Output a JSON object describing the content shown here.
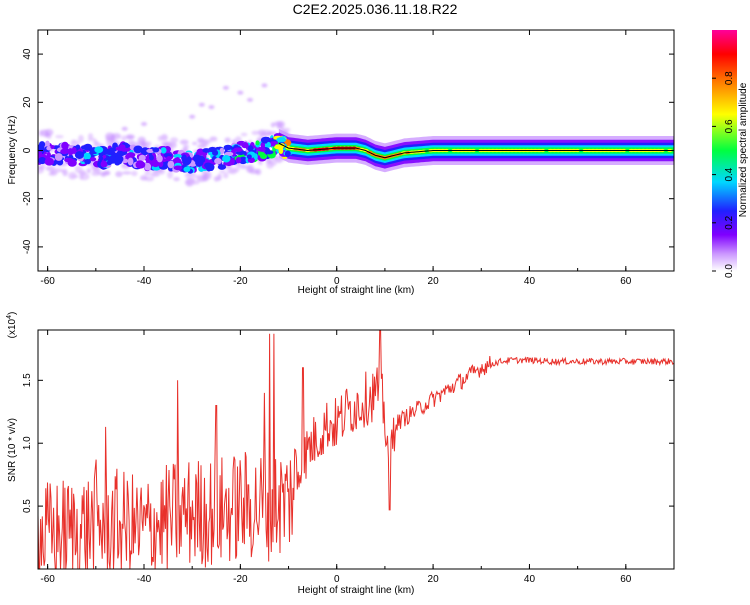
{
  "title": "C2E2.2025.036.11.18.R22",
  "chart_data": [
    {
      "type": "heatmap",
      "xlabel": "Height of straight line (km)",
      "ylabel": "Frequency (Hz)",
      "xlim": [
        -62,
        70
      ],
      "ylim": [
        -50,
        50
      ],
      "x_ticks": [
        -60,
        -40,
        -20,
        0,
        20,
        40,
        60
      ],
      "y_ticks": [
        -40,
        -20,
        0,
        20,
        40
      ],
      "colorbar": {
        "label": "Normalized spectral amplitude",
        "range": [
          0.0,
          1.0
        ],
        "ticks": [
          0.0,
          0.2,
          0.4,
          0.6,
          0.8
        ],
        "tick_labels": [
          "0.0",
          "0.2",
          "0.4",
          "0.6",
          "0.8"
        ],
        "colormap": [
          "#ffffff",
          "#cc99ff",
          "#8000ff",
          "#2020ff",
          "#00d8ff",
          "#00ff40",
          "#ffff00",
          "#ff8000",
          "#ff0000",
          "#ff0099"
        ]
      },
      "ridge": {
        "x": [
          -62,
          -55,
          -48,
          -44,
          -40,
          -36,
          -32,
          -28,
          -24,
          -20,
          -16,
          -12,
          -10,
          -6,
          0,
          4,
          6,
          8,
          10,
          12,
          14,
          20,
          30,
          40,
          50,
          60,
          70
        ],
        "frequency": [
          -1,
          -2,
          -3,
          -1,
          -4,
          -3,
          -5,
          -4,
          -3,
          -1,
          0,
          3,
          1,
          0,
          1,
          1,
          0,
          -2,
          -3,
          -2,
          -1,
          0,
          0,
          0,
          0,
          0,
          0
        ],
        "amplitude": [
          0.3,
          0.3,
          0.35,
          0.3,
          0.3,
          0.35,
          0.3,
          0.35,
          0.35,
          0.4,
          0.4,
          0.5,
          0.7,
          0.75,
          0.9,
          0.85,
          0.7,
          0.8,
          0.8,
          0.75,
          0.7,
          0.65,
          0.65,
          0.65,
          0.65,
          0.65,
          0.65
        ]
      }
    },
    {
      "type": "line",
      "xlabel": "Height of straight line (km)",
      "ylabel": "SNR (10 * v/v)",
      "y_multiplier": "(x10^4)",
      "xlim": [
        -62,
        70
      ],
      "ylim": [
        0,
        1.9
      ],
      "x_ticks": [
        -60,
        -40,
        -20,
        0,
        20,
        40,
        60
      ],
      "y_ticks": [
        0.5,
        1.0,
        1.5
      ],
      "y_tick_labels": [
        "0.5",
        "1.0",
        "1.5"
      ],
      "color": "#e8302a",
      "series": [
        {
          "x": [
            -62,
            -55,
            -50,
            -45,
            -40,
            -35,
            -30,
            -25,
            -20,
            -15,
            -10,
            -8,
            -6,
            -4,
            -2,
            0,
            2,
            4,
            6,
            8,
            9,
            10,
            11,
            12,
            14,
            16,
            18,
            20,
            22,
            24,
            26,
            28,
            30,
            32,
            34,
            36,
            40,
            45,
            50,
            55,
            60,
            65,
            70
          ],
          "y": [
            0.25,
            0.3,
            0.35,
            0.35,
            0.3,
            0.4,
            0.45,
            0.45,
            0.5,
            0.5,
            0.55,
            0.75,
            0.95,
            1.05,
            1.15,
            1.15,
            1.25,
            1.3,
            1.35,
            1.4,
            1.45,
            1.2,
            0.85,
            1.15,
            1.2,
            1.25,
            1.3,
            1.35,
            1.4,
            1.45,
            1.5,
            1.55,
            1.6,
            1.63,
            1.65,
            1.66,
            1.66,
            1.65,
            1.65,
            1.65,
            1.65,
            1.65,
            1.65
          ],
          "spikes": [
            {
              "x": -50,
              "y": 0.87
            },
            {
              "x": -48,
              "y": 1.13
            },
            {
              "x": -33,
              "y": 1.5
            },
            {
              "x": -25,
              "y": 1.3
            },
            {
              "x": -15,
              "y": 1.4
            },
            {
              "x": -14,
              "y": 1.87
            },
            {
              "x": -13,
              "y": 1.87
            },
            {
              "x": -7,
              "y": 1.6
            },
            {
              "x": 9,
              "y": 1.9
            }
          ]
        }
      ]
    }
  ],
  "top_chart": {
    "x_tick_labels": [
      "-60",
      "-40",
      "-20",
      "0",
      "20",
      "40",
      "60"
    ],
    "y_tick_labels": [
      "-40",
      "-20",
      "0",
      "20",
      "40"
    ]
  },
  "bottom_chart": {
    "x_tick_labels": [
      "-60",
      "-40",
      "-20",
      "0",
      "20",
      "40",
      "60"
    ]
  }
}
